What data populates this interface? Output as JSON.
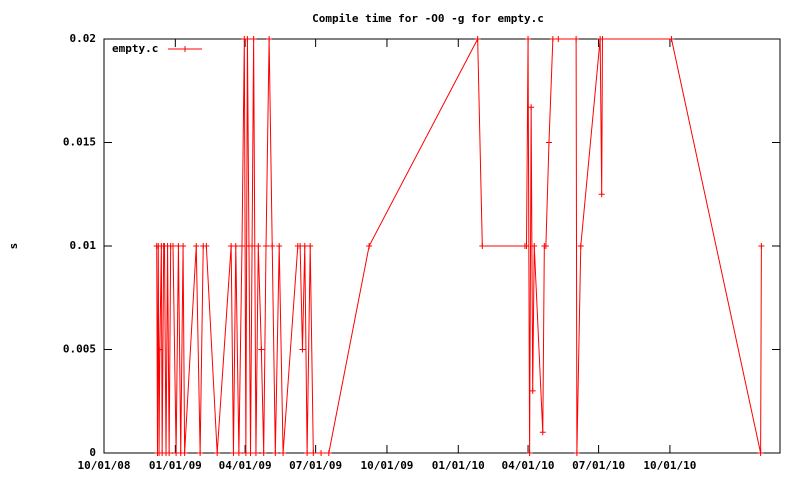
{
  "chart_data": {
    "type": "line",
    "title": "Compile time for -O0 -g for empty.c",
    "y_label": "s",
    "x": [
      "2008-12-08",
      "2008-12-09",
      "2008-12-10",
      "2008-12-11",
      "2008-12-12",
      "2008-12-14",
      "2008-12-15",
      "2008-12-17",
      "2008-12-18",
      "2008-12-20",
      "2008-12-22",
      "2008-12-24",
      "2008-12-26",
      "2008-12-29",
      "2009-01-02",
      "2009-01-05",
      "2009-01-08",
      "2009-01-11",
      "2009-01-13",
      "2009-01-28",
      "2009-02-02",
      "2009-02-06",
      "2009-02-10",
      "2009-02-24",
      "2009-03-14",
      "2009-03-17",
      "2009-03-20",
      "2009-03-24",
      "2009-03-28",
      "2009-03-31",
      "2009-04-02",
      "2009-04-04",
      "2009-04-06",
      "2009-04-08",
      "2009-04-10",
      "2009-04-12",
      "2009-04-15",
      "2009-04-18",
      "2009-04-22",
      "2009-04-25",
      "2009-04-28",
      "2009-05-02",
      "2009-05-06",
      "2009-05-10",
      "2009-05-15",
      "2009-05-20",
      "2009-06-08",
      "2009-06-11",
      "2009-06-14",
      "2009-06-17",
      "2009-06-20",
      "2009-06-24",
      "2009-06-28",
      "2009-07-08",
      "2009-07-18",
      "2009-09-08",
      "2010-01-26",
      "2010-02-01",
      "2010-03-28",
      "2010-03-30",
      "2010-04-01",
      "2010-04-03",
      "2010-04-05",
      "2010-04-07",
      "2010-04-09",
      "2010-04-20",
      "2010-04-22",
      "2010-04-24",
      "2010-04-28",
      "2010-05-03",
      "2010-05-10",
      "2010-06-02",
      "2010-06-03",
      "2010-06-08",
      "2010-07-03",
      "2010-07-05",
      "2010-07-06",
      "2010-10-03",
      "2011-01-26",
      "2011-01-27"
    ],
    "series": [
      {
        "name": "empty.c",
        "color": "#ff0000",
        "values": [
          0.01,
          0,
          0.01,
          0,
          0.005,
          0.01,
          0,
          0.01,
          0.01,
          0,
          0.01,
          0,
          0.01,
          0.01,
          0,
          0.01,
          0,
          0.01,
          0,
          0.01,
          0,
          0.01,
          0.01,
          0,
          0.01,
          0,
          0.01,
          0,
          0.01,
          0.02,
          0,
          0.02,
          0.01,
          0,
          0.01,
          0.02,
          0,
          0.01,
          0.005,
          0,
          0.01,
          0.02,
          0.01,
          0,
          0.01,
          0,
          0.01,
          0.01,
          0.005,
          0.01,
          0,
          0.01,
          0,
          0,
          0,
          0.01,
          0.02,
          0.01,
          0.01,
          0.01,
          0.02,
          0,
          0.0167,
          0.003,
          0.01,
          0.001,
          0.01,
          0.01,
          0.015,
          0.02,
          0.02,
          0.02,
          0,
          0.01,
          0.02,
          0.0125,
          0.02,
          0.02,
          0,
          0.01
        ]
      }
    ],
    "xlim": [
      "2008-10-01",
      "2011-02-20"
    ],
    "xticks": [
      {
        "value": "2008-10-01",
        "label": "10/01/08"
      },
      {
        "value": "2009-01-01",
        "label": "01/01/09"
      },
      {
        "value": "2009-04-01",
        "label": "04/01/09"
      },
      {
        "value": "2009-07-01",
        "label": "07/01/09"
      },
      {
        "value": "2009-10-01",
        "label": "10/01/09"
      },
      {
        "value": "2010-01-01",
        "label": "01/01/10"
      },
      {
        "value": "2010-04-01",
        "label": "04/01/10"
      },
      {
        "value": "2010-07-01",
        "label": "07/01/10"
      },
      {
        "value": "2010-10-01",
        "label": "10/01/10"
      }
    ],
    "ylim": [
      0,
      0.02
    ],
    "yticks": [
      0,
      0.005,
      0.01,
      0.015,
      0.02
    ],
    "legend": "top-left"
  }
}
